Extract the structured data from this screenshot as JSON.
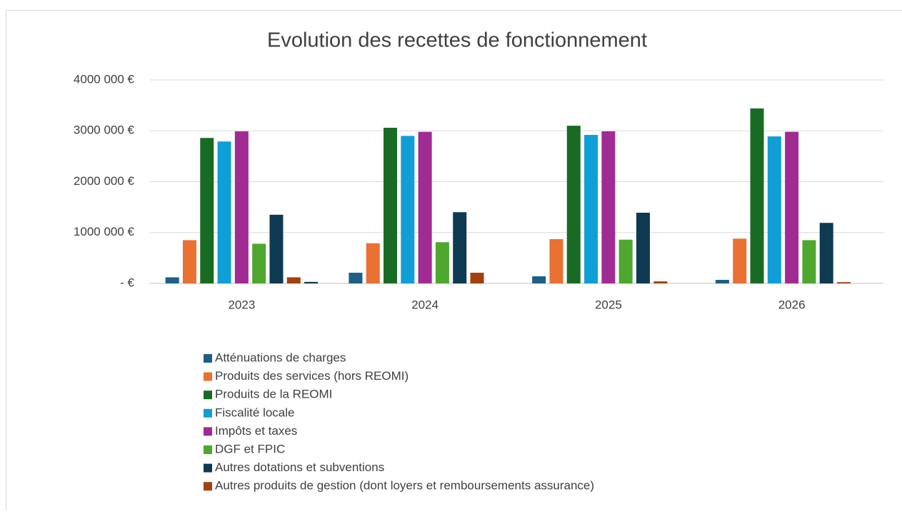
{
  "chart_data": {
    "type": "bar",
    "title": "Evolution des recettes de fonctionnement",
    "categories": [
      "2023",
      "2024",
      "2025",
      "2026"
    ],
    "ylim": [
      0,
      4000000
    ],
    "yticks": [
      {
        "value": 0,
        "label": "-  €"
      },
      {
        "value": 1000000,
        "label": "1000 000 €"
      },
      {
        "value": 2000000,
        "label": "2000 000 €"
      },
      {
        "value": 3000000,
        "label": "3000 000 €"
      },
      {
        "value": 4000000,
        "label": "4000 000 €"
      }
    ],
    "grid": true,
    "legend": "bottom",
    "series": [
      {
        "name": "Atténuations de charges",
        "color": "#1f5f86",
        "values": [
          120000,
          210000,
          140000,
          70000
        ]
      },
      {
        "name": "Produits des services (hors REOMI)",
        "color": "#e97132",
        "values": [
          850000,
          790000,
          870000,
          880000
        ]
      },
      {
        "name": "Produits de la REOMI",
        "color": "#196b24",
        "values": [
          2860000,
          3060000,
          3100000,
          3440000
        ]
      },
      {
        "name": "Fiscalité locale",
        "color": "#0f9ed5",
        "values": [
          2790000,
          2900000,
          2920000,
          2890000
        ]
      },
      {
        "name": "Impôts et taxes",
        "color": "#a02b93",
        "values": [
          2990000,
          2980000,
          2990000,
          2980000
        ]
      },
      {
        "name": "DGF et FPIC",
        "color": "#4ea72e",
        "values": [
          780000,
          810000,
          860000,
          850000
        ]
      },
      {
        "name": "Autres dotations et subventions",
        "color": "#0e3a52",
        "values": [
          1350000,
          1400000,
          1390000,
          1190000
        ]
      },
      {
        "name": "Autres produits de gestion (dont loyers et remboursements assurance)",
        "color": "#a3400f",
        "values": [
          120000,
          210000,
          40000,
          25000
        ]
      },
      {
        "name": null,
        "color": "#0e3a52",
        "values": [
          30000,
          0,
          0,
          0
        ]
      }
    ]
  }
}
